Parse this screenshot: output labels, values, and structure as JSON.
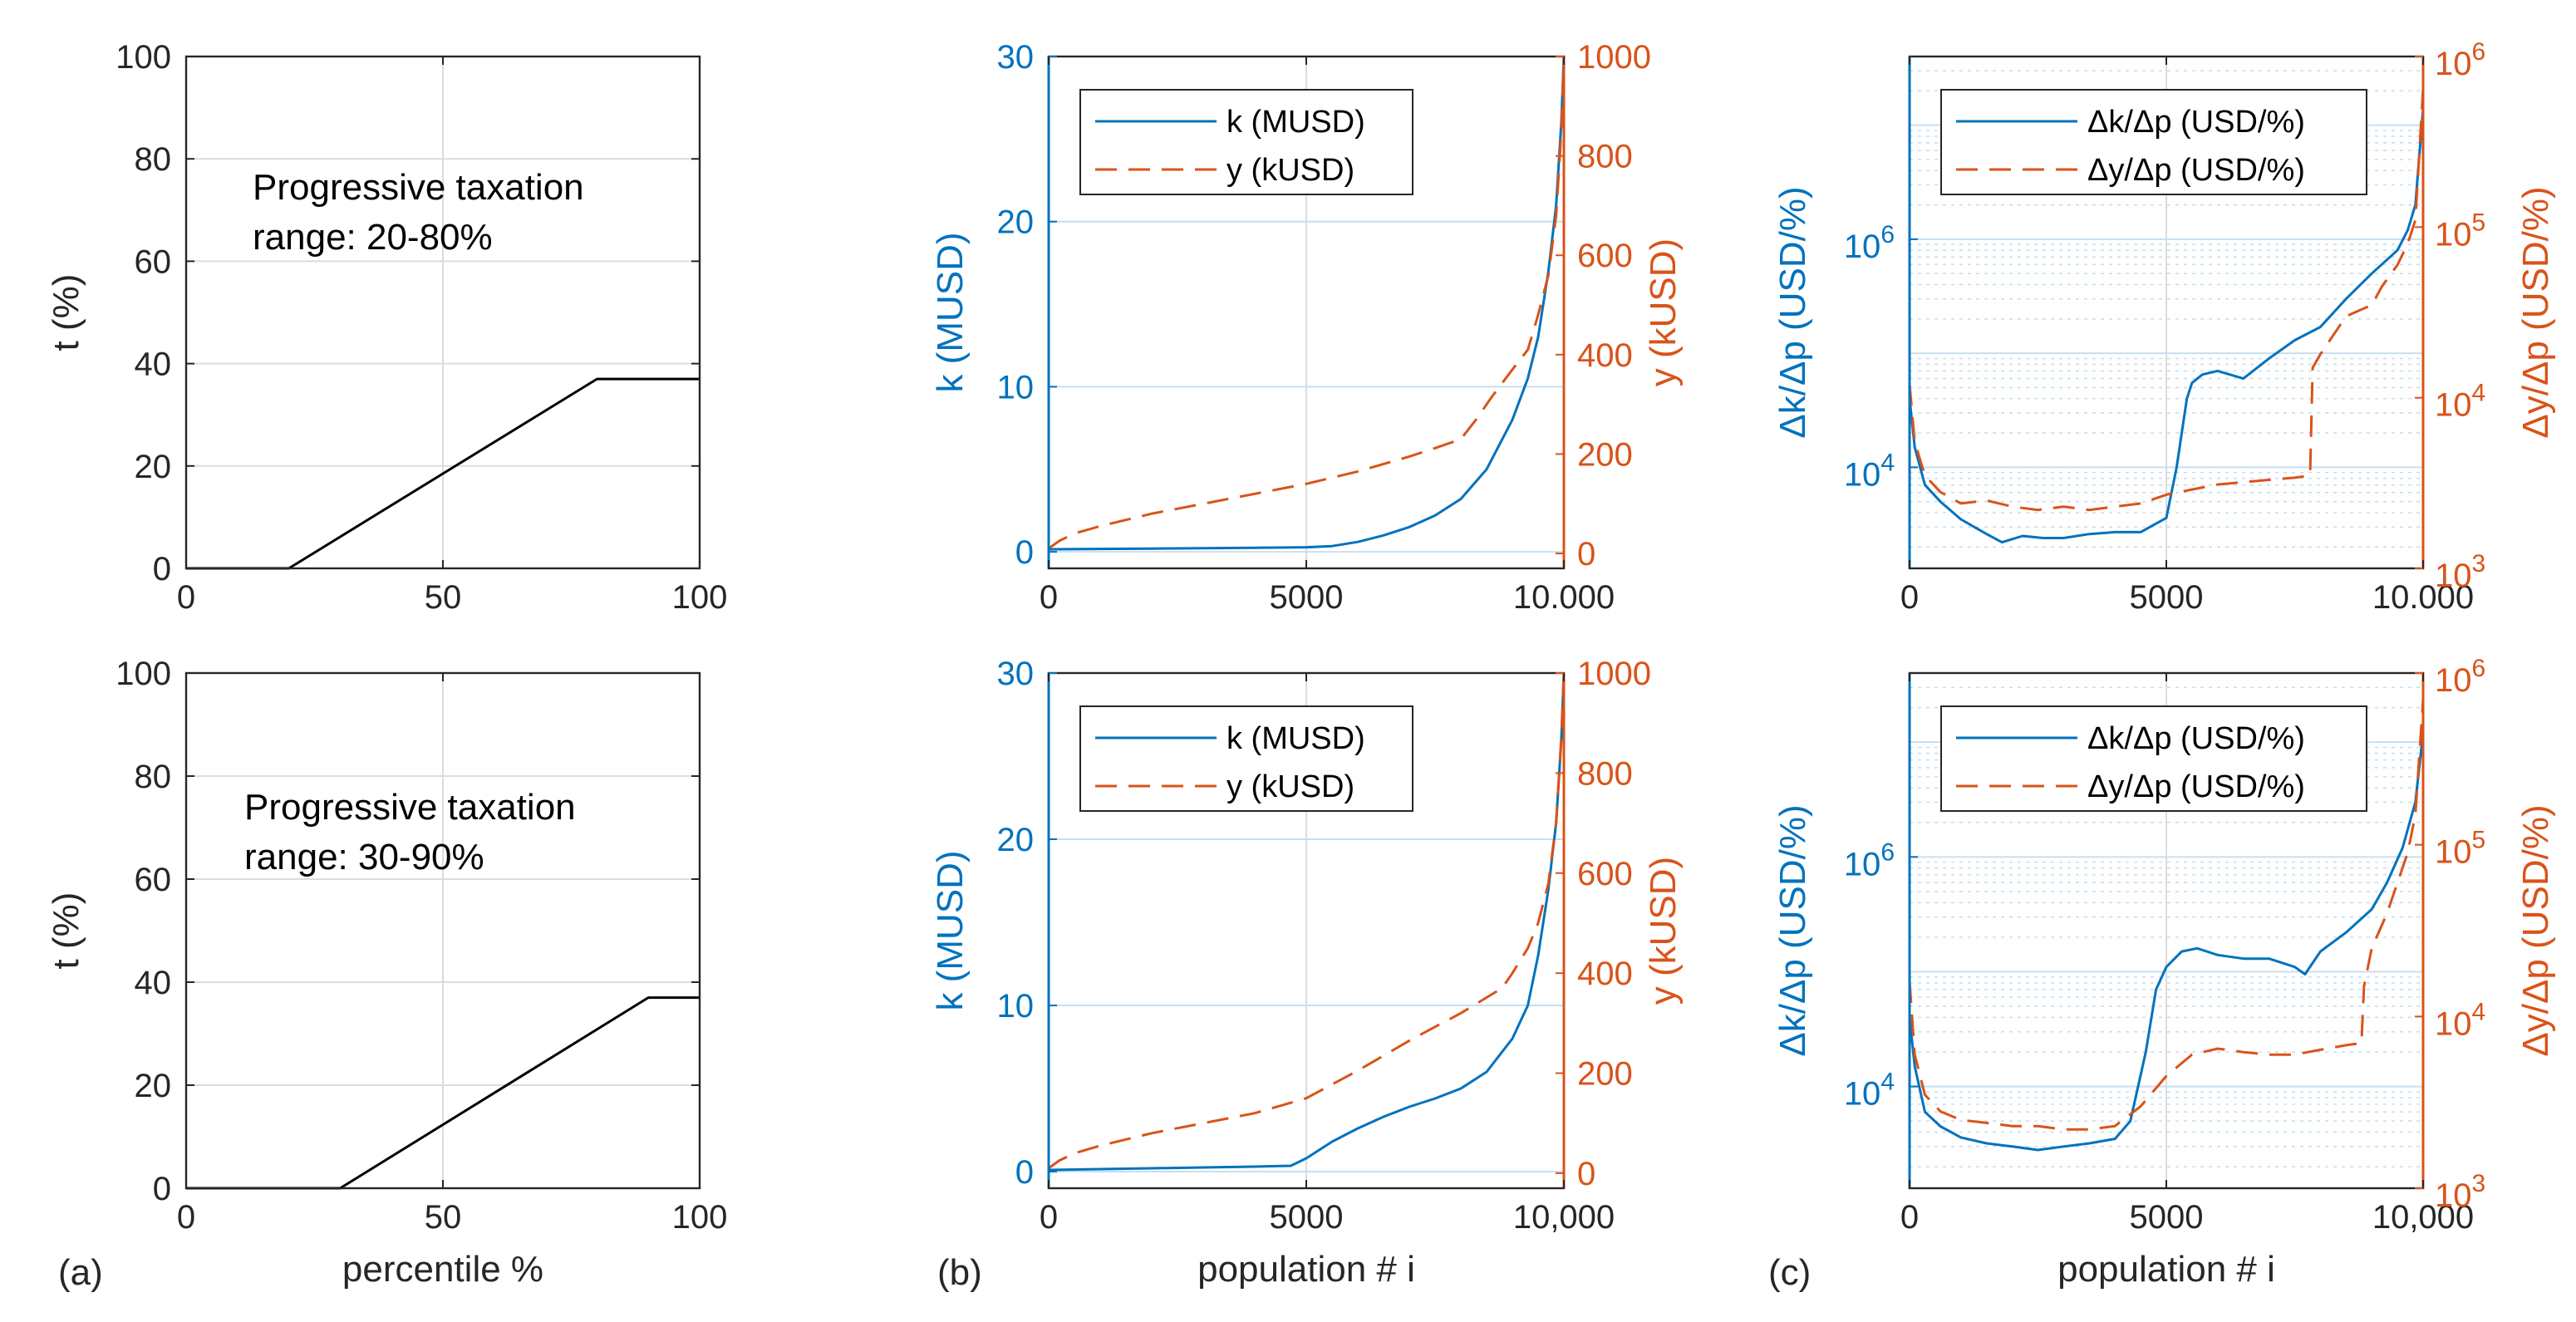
{
  "colors": {
    "k": "#0072BD",
    "y": "#D95319",
    "axis": "#262626",
    "grid": "#dcdcdc",
    "kgrid": "#c6dff0"
  },
  "panel_labels": [
    "(a)",
    "(b)",
    "(c)"
  ],
  "chart_data": [
    {
      "id": "a1",
      "type": "line",
      "title": "",
      "xlabel": "",
      "ylabel": "t (%)",
      "xlim": [
        0,
        100
      ],
      "ylim": [
        0,
        100
      ],
      "xticks": [
        "0",
        "50",
        "100"
      ],
      "yticks": [
        "0",
        "20",
        "40",
        "60",
        "80",
        "100"
      ],
      "annotation": [
        "Progressive taxation",
        "range: 20-80%"
      ],
      "series": [
        {
          "name": "t",
          "x": [
            0,
            20,
            80,
            100
          ],
          "values": [
            0,
            0,
            37,
            37
          ]
        }
      ]
    },
    {
      "id": "a2",
      "type": "line",
      "title": "",
      "xlabel": "percentile %",
      "ylabel": "t (%)",
      "xlim": [
        0,
        100
      ],
      "ylim": [
        0,
        100
      ],
      "xticks": [
        "0",
        "50",
        "100"
      ],
      "yticks": [
        "0",
        "20",
        "40",
        "60",
        "80",
        "100"
      ],
      "annotation": [
        "Progressive taxation",
        "range: 30-90%"
      ],
      "series": [
        {
          "name": "t",
          "x": [
            0,
            30,
            90,
            100
          ],
          "values": [
            0,
            0,
            37,
            37
          ]
        }
      ]
    },
    {
      "id": "b1",
      "type": "line",
      "title": "",
      "xlabel": "",
      "ylabel": "k (MUSD)",
      "y2label": "y (kUSD)",
      "xlim": [
        0,
        10000
      ],
      "ylim": [
        -1,
        30
      ],
      "y2lim": [
        -30,
        1000
      ],
      "xticks": [
        "0",
        "5000",
        "10.000"
      ],
      "yticks": [
        "0",
        "10",
        "20",
        "30"
      ],
      "y2ticks": [
        "0",
        "200",
        "400",
        "600",
        "800",
        "1000"
      ],
      "legend": [
        "k (MUSD)",
        "y (kUSD)"
      ],
      "series": [
        {
          "name": "k (MUSD)",
          "axis": "left",
          "x": [
            0,
            1000,
            2000,
            3000,
            4000,
            5000,
            5500,
            6000,
            6500,
            7000,
            7500,
            8000,
            8500,
            9000,
            9300,
            9500,
            9700,
            9850,
            9950,
            10000
          ],
          "values": [
            0.15,
            0.18,
            0.2,
            0.22,
            0.25,
            0.28,
            0.35,
            0.6,
            1.0,
            1.5,
            2.2,
            3.2,
            5.0,
            8.0,
            10.5,
            13.0,
            17.0,
            21.0,
            26.0,
            30.0
          ]
        },
        {
          "name": "y (kUSD)",
          "axis": "right",
          "x": [
            0,
            200,
            500,
            1000,
            2000,
            3000,
            4000,
            5000,
            6000,
            7000,
            7500,
            8000,
            8300,
            8600,
            9000,
            9300,
            9500,
            9700,
            9850,
            9950,
            10000
          ],
          "values": [
            10,
            25,
            40,
            55,
            80,
            100,
            120,
            140,
            165,
            195,
            212,
            230,
            270,
            315,
            370,
            410,
            480,
            560,
            680,
            850,
            1000
          ]
        }
      ]
    },
    {
      "id": "b2",
      "type": "line",
      "title": "",
      "xlabel": "population # i",
      "ylabel": "k (MUSD)",
      "y2label": "y (kUSD)",
      "xlim": [
        0,
        10000
      ],
      "ylim": [
        -1,
        30
      ],
      "y2lim": [
        -30,
        1000
      ],
      "xticks": [
        "0",
        "5000",
        "10,000"
      ],
      "yticks": [
        "0",
        "10",
        "20",
        "30"
      ],
      "y2ticks": [
        "0",
        "200",
        "400",
        "600",
        "800",
        "1000"
      ],
      "legend": [
        "k (MUSD)",
        "y (kUSD)"
      ],
      "series": [
        {
          "name": "k (MUSD)",
          "axis": "left",
          "x": [
            0,
            1000,
            2000,
            3000,
            4000,
            4700,
            5000,
            5500,
            6000,
            6500,
            7000,
            7500,
            8000,
            8500,
            9000,
            9300,
            9500,
            9700,
            9850,
            9950,
            10000
          ],
          "values": [
            0.1,
            0.15,
            0.2,
            0.25,
            0.3,
            0.35,
            0.8,
            1.8,
            2.6,
            3.3,
            3.9,
            4.4,
            5.0,
            6.0,
            8.0,
            10.0,
            13.0,
            17.0,
            21.0,
            26.0,
            30.0
          ]
        },
        {
          "name": "y (kUSD)",
          "axis": "right",
          "x": [
            0,
            200,
            500,
            1000,
            2000,
            3000,
            4000,
            5000,
            6000,
            7000,
            8000,
            8800,
            9000,
            9300,
            9500,
            9700,
            9850,
            9950,
            10000
          ],
          "values": [
            10,
            25,
            40,
            55,
            80,
            100,
            120,
            150,
            205,
            265,
            320,
            370,
            400,
            450,
            500,
            580,
            700,
            870,
            1000
          ]
        }
      ]
    },
    {
      "id": "c1",
      "type": "line",
      "title": "",
      "xlabel": "",
      "ylabel": "Δk/Δp (USD/%)",
      "y2label": "Δy/Δp (USD/%)",
      "xlim": [
        0,
        10000
      ],
      "yscale": "log",
      "ylim": [
        1300,
        40000000
      ],
      "y2scale": "log",
      "y2lim": [
        1000,
        1000000
      ],
      "xticks": [
        "0",
        "5000",
        "10.000"
      ],
      "yticks": [
        {
          "base": "10",
          "exp": "4"
        },
        {
          "base": "10",
          "exp": "6"
        }
      ],
      "y2ticks": [
        {
          "base": "10",
          "exp": "3"
        },
        {
          "base": "10",
          "exp": "4"
        },
        {
          "base": "10",
          "exp": "5"
        },
        {
          "base": "10",
          "exp": "6"
        }
      ],
      "legend": [
        "Δk/Δp (USD/%)",
        "Δy/Δp (USD/%)"
      ],
      "series": [
        {
          "name": "Δk/Δp (USD/%)",
          "axis": "left",
          "x": [
            0,
            100,
            300,
            600,
            1000,
            1500,
            1800,
            2200,
            2600,
            3000,
            3500,
            4000,
            4500,
            5000,
            5200,
            5400,
            5500,
            5700,
            6000,
            6500,
            7000,
            7500,
            8000,
            8500,
            9000,
            9500,
            9700,
            9850,
            10000
          ],
          "values": [
            40000,
            15000,
            7000,
            5000,
            3500,
            2600,
            2200,
            2500,
            2400,
            2400,
            2600,
            2700,
            2700,
            3600,
            10000,
            40000,
            55000,
            65000,
            70000,
            60000,
            90000,
            130000,
            170000,
            300000,
            500000,
            800000,
            1200000,
            2000000,
            14000000
          ]
        },
        {
          "name": "Δy/Δp (USD/%)",
          "axis": "right",
          "x": [
            0,
            100,
            300,
            600,
            1000,
            1500,
            2000,
            2500,
            3000,
            3500,
            4000,
            4500,
            5000,
            5500,
            6000,
            6500,
            7000,
            7500,
            7800,
            7850,
            8000,
            8500,
            9000,
            9200,
            9500,
            9700,
            9850,
            10000
          ],
          "values": [
            12000,
            5500,
            3500,
            2800,
            2400,
            2500,
            2300,
            2200,
            2300,
            2200,
            2300,
            2400,
            2700,
            2900,
            3100,
            3200,
            3300,
            3400,
            3500,
            15000,
            18000,
            30000,
            35000,
            45000,
            60000,
            80000,
            110000,
            650000
          ]
        }
      ]
    },
    {
      "id": "c2",
      "type": "line",
      "title": "",
      "xlabel": "population # i",
      "ylabel": "Δk/Δp (USD/%)",
      "y2label": "Δy/Δp (USD/%)",
      "xlim": [
        0,
        10000
      ],
      "yscale": "log",
      "ylim": [
        1300,
        40000000
      ],
      "y2scale": "log",
      "y2lim": [
        1000,
        1000000
      ],
      "xticks": [
        "0",
        "5000",
        "10,000"
      ],
      "yticks": [
        {
          "base": "10",
          "exp": "4"
        },
        {
          "base": "10",
          "exp": "6"
        }
      ],
      "y2ticks": [
        {
          "base": "10",
          "exp": "3"
        },
        {
          "base": "10",
          "exp": "4"
        },
        {
          "base": "10",
          "exp": "5"
        },
        {
          "base": "10",
          "exp": "6"
        }
      ],
      "legend": [
        "Δk/Δp (USD/%)",
        "Δy/Δp (USD/%)"
      ],
      "series": [
        {
          "name": "Δk/Δp (USD/%)",
          "axis": "left",
          "x": [
            0,
            100,
            300,
            600,
            1000,
            1500,
            2000,
            2500,
            3000,
            3500,
            4000,
            4300,
            4600,
            4800,
            5000,
            5300,
            5600,
            6000,
            6500,
            7000,
            7500,
            7700,
            8000,
            8500,
            9000,
            9300,
            9600,
            9850,
            10000
          ],
          "values": [
            40000,
            15000,
            6000,
            4500,
            3600,
            3200,
            3000,
            2800,
            3000,
            3200,
            3500,
            5000,
            20000,
            70000,
            110000,
            150000,
            160000,
            140000,
            130000,
            130000,
            110000,
            95000,
            150000,
            220000,
            350000,
            600000,
            1200000,
            3000000,
            12000000
          ]
        },
        {
          "name": "Δy/Δp (USD/%)",
          "axis": "right",
          "x": [
            0,
            100,
            300,
            600,
            1000,
            1500,
            2000,
            2500,
            3000,
            3500,
            4000,
            4500,
            5000,
            5500,
            6000,
            6500,
            7000,
            7500,
            8000,
            8500,
            8800,
            8850,
            9000,
            9300,
            9500,
            9700,
            9850,
            10000
          ],
          "values": [
            16000,
            6000,
            3500,
            2800,
            2500,
            2400,
            2300,
            2300,
            2200,
            2200,
            2300,
            3000,
            4500,
            6000,
            6500,
            6200,
            6000,
            6000,
            6400,
            6800,
            7000,
            15000,
            25000,
            40000,
            60000,
            90000,
            150000,
            700000
          ]
        }
      ]
    }
  ]
}
